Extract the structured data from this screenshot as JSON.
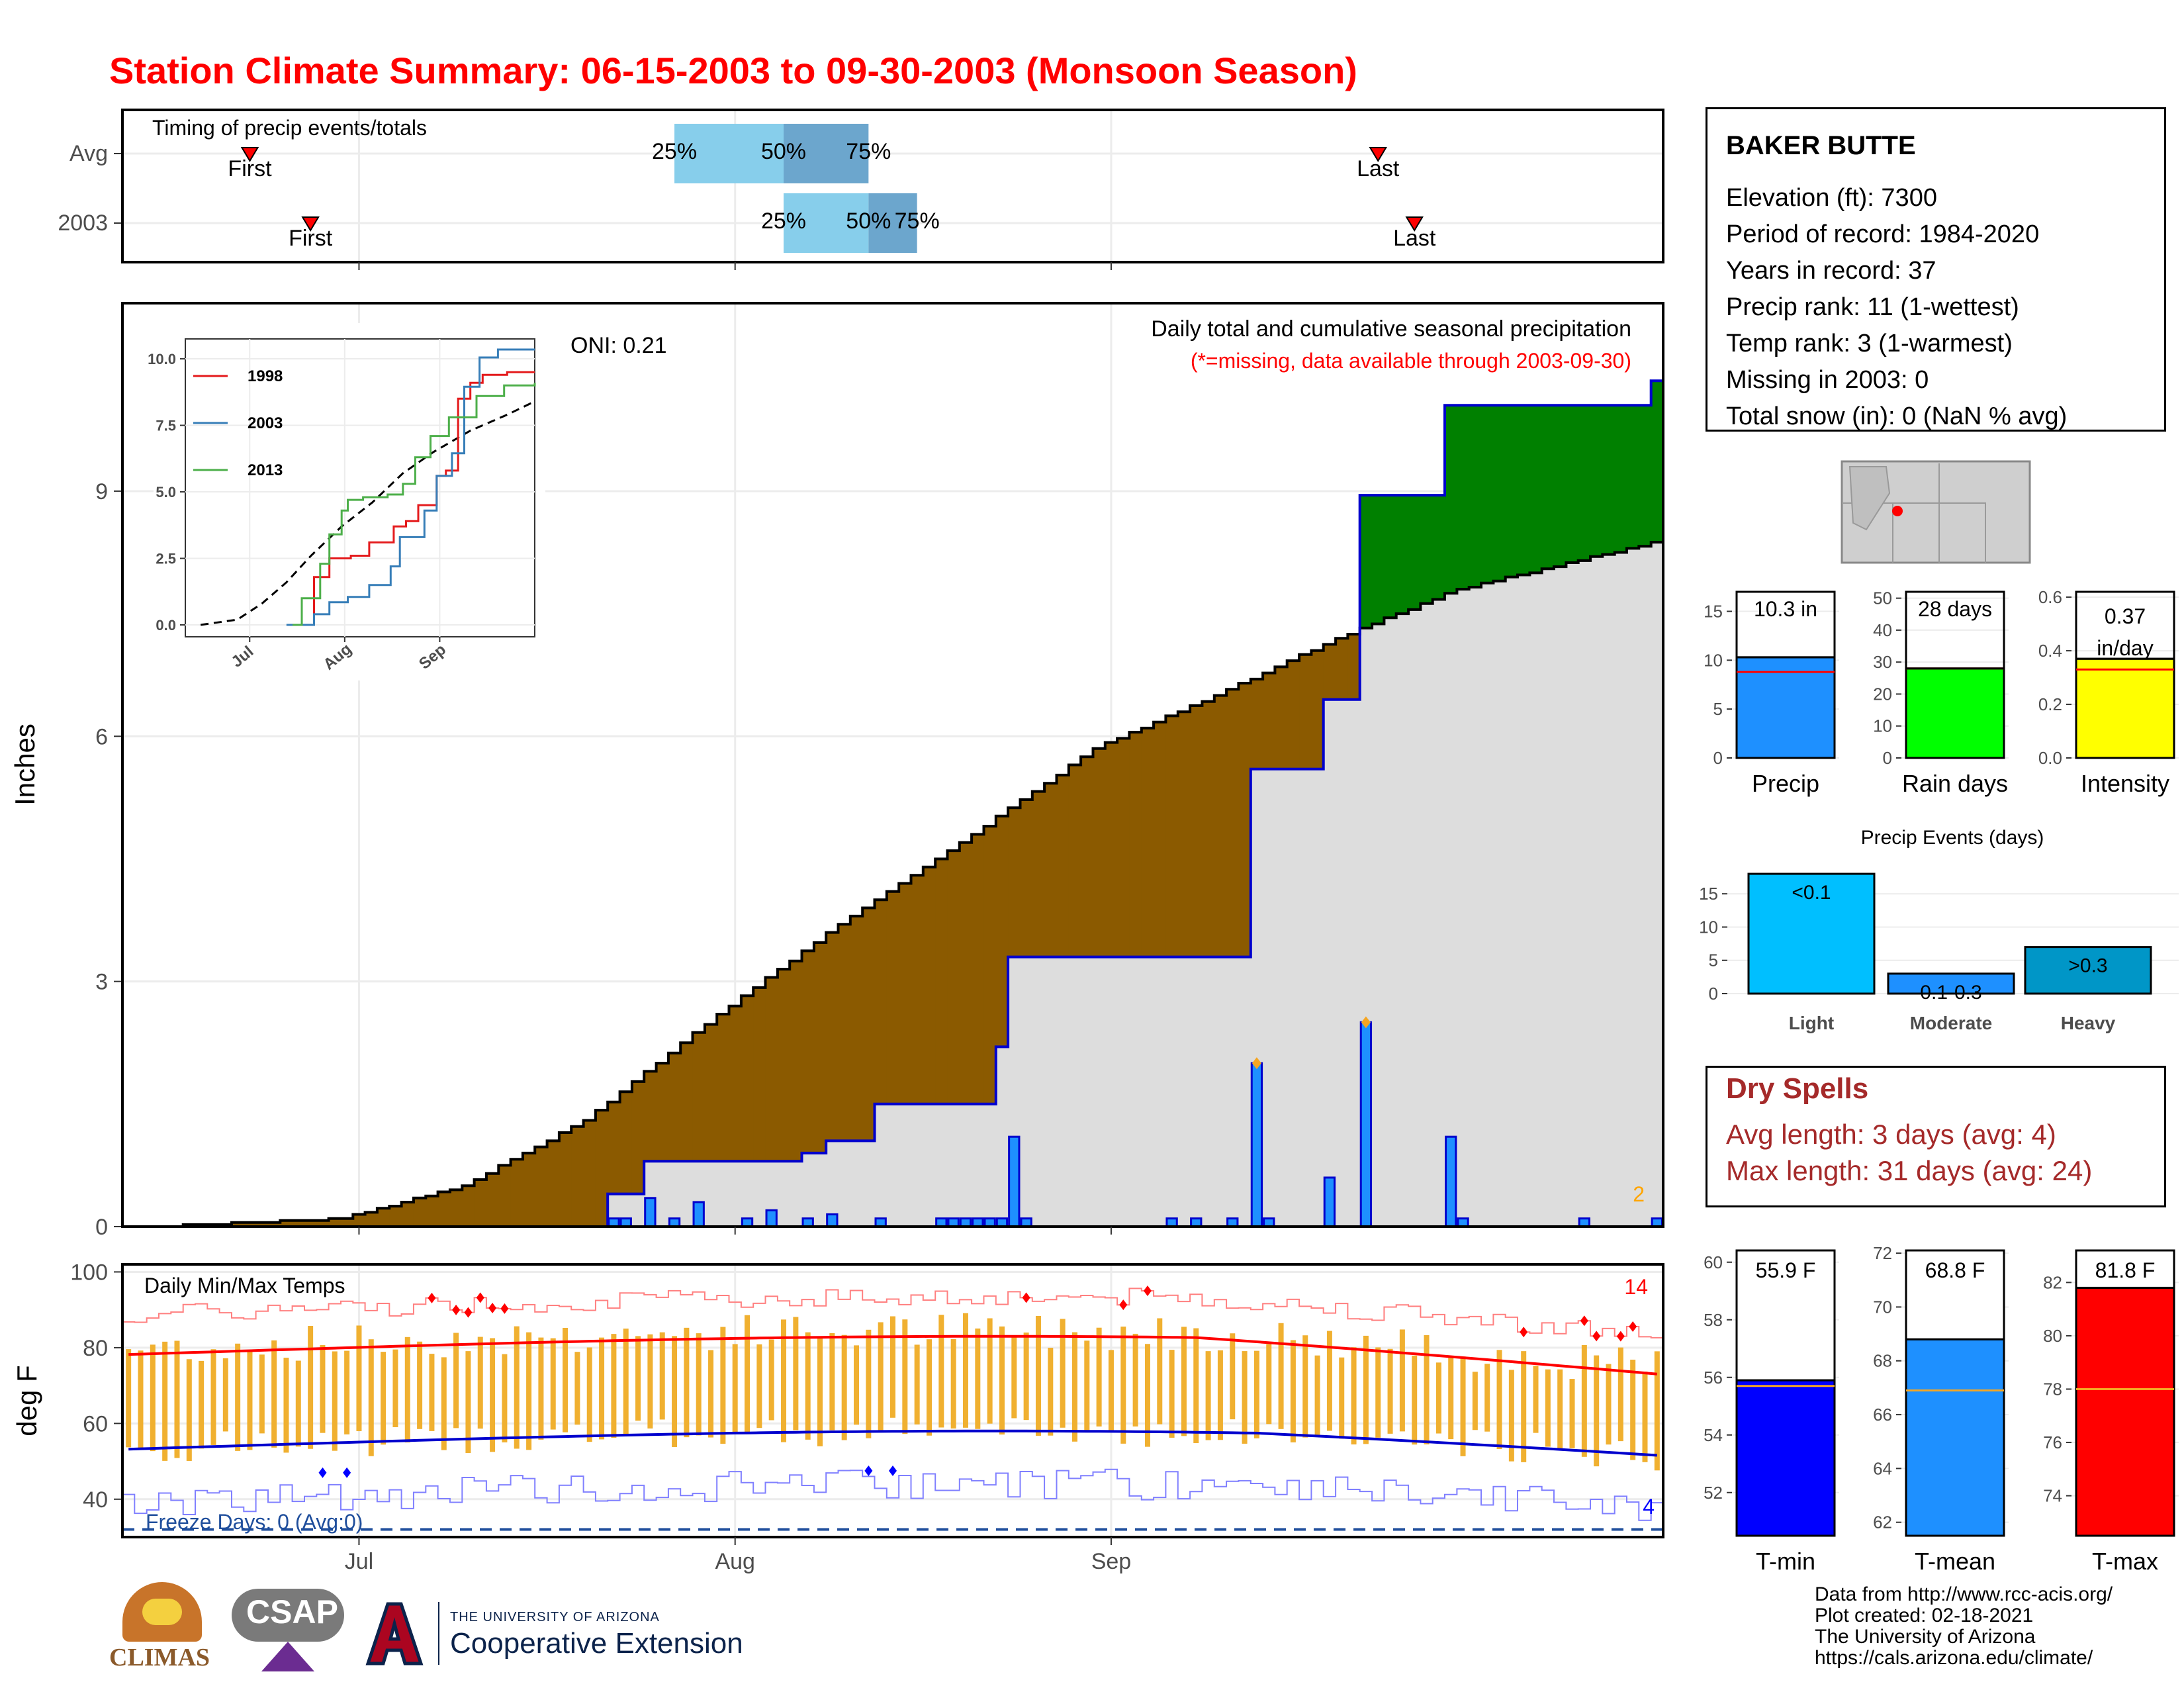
{
  "title": "Station Climate Summary: 06-15-2003 to 09-30-2003 (Monsoon Season)",
  "timing": {
    "label": "Timing of precip events/totals",
    "rows": [
      {
        "name": "Avg",
        "first": "06-22",
        "last": "09-23",
        "q25": "07-27",
        "q50": "08-05",
        "q75": "08-12"
      },
      {
        "name": "2003",
        "first": "06-27",
        "last": "09-26",
        "q25": "08-05",
        "q50": "08-12",
        "q75": "08-16"
      }
    ],
    "first_label": "First",
    "last_label": "Last",
    "q_labels": [
      "25%",
      "50%",
      "75%"
    ]
  },
  "main": {
    "ylabel": "Inches",
    "ticks": [
      0,
      3,
      6,
      9
    ],
    "ylim": [
      0,
      11.3
    ],
    "subtitle": "Daily total and cumulative seasonal precipitation",
    "missing_note": "(*=missing, data available through 2003-09-30)",
    "oni": "ONI: 0.21",
    "corner_count": "2"
  },
  "inset": {
    "yticks": [
      "0.0",
      "2.5",
      "5.0",
      "7.5",
      "10.0"
    ],
    "xticks": [
      "Jul",
      "Aug",
      "Sep"
    ],
    "legend": [
      {
        "name": "1998",
        "color": "#e41a1c"
      },
      {
        "name": "2003",
        "color": "#377eb8"
      },
      {
        "name": "2013",
        "color": "#4daf4a"
      }
    ]
  },
  "temps": {
    "label": "Daily Min/Max Temps",
    "ylabel": "deg F",
    "ticks": [
      40,
      60,
      80,
      100
    ],
    "ylim": [
      30,
      102
    ],
    "freeze": "Freeze Days: 0 (Avg:0)",
    "hot_count": "14",
    "cold_count": "4"
  },
  "xaxis": {
    "ticks": [
      "Jul",
      "Aug",
      "Sep"
    ]
  },
  "station": {
    "name": "BAKER BUTTE",
    "lines": [
      "Elevation (ft): 7300",
      "Period of record: 1984-2020",
      "Years in record: 37",
      "Precip rank: 11 (1-wettest)",
      "Temp rank: 3 (1-warmest)",
      "Missing in 2003: 0",
      "Total snow (in): 0 (NaN % avg)"
    ]
  },
  "mini_bars": [
    {
      "label": "Precip",
      "value_text": "10.3 in",
      "value": 10.3,
      "avg": 8.8,
      "ymax": 17,
      "ticks": [
        "0",
        "5",
        "10",
        "15"
      ],
      "tick_vals": [
        0,
        5,
        10,
        15
      ],
      "color": "#1e90ff"
    },
    {
      "label": "Rain days",
      "value_text": "28 days",
      "value": 28,
      "avg": 28,
      "ymax": 52,
      "ticks": [
        "0",
        "10",
        "20",
        "30",
        "40",
        "50"
      ],
      "tick_vals": [
        0,
        10,
        20,
        30,
        40,
        50
      ],
      "color": "#00ff00"
    },
    {
      "label": "Intensity",
      "value_text": "0.37 in/day",
      "value": 0.37,
      "avg": 0.33,
      "ymax": 0.62,
      "ticks": [
        "0.0",
        "0.2",
        "0.4",
        "0.6"
      ],
      "tick_vals": [
        0,
        0.2,
        0.4,
        0.6
      ],
      "color": "#ffff00"
    }
  ],
  "events": {
    "title": "Precip Events (days)",
    "categories": [
      "Light",
      "Moderate",
      "Heavy"
    ],
    "values": [
      18,
      3,
      7
    ],
    "labels": [
      "<0.1",
      "0.1-0.3",
      ">0.3"
    ],
    "colors": [
      "#00bfff",
      "#1e90ff",
      "#0096c7"
    ],
    "ticks": [
      0,
      5,
      10,
      15
    ]
  },
  "dry_spells": {
    "title": "Dry Spells",
    "avg": "Avg length: 3 days (avg: 4)",
    "max": "Max length: 31 days (avg: 24)"
  },
  "temp_bars": [
    {
      "label": "T-min",
      "value_text": "55.9 F",
      "value": 55.9,
      "avg": 55.7,
      "ymin": 50.5,
      "ymax": 60.5,
      "ticks": [
        52,
        54,
        56,
        58,
        60
      ],
      "color": "#0000ff"
    },
    {
      "label": "T-mean",
      "value_text": "68.8 F",
      "value": 68.8,
      "avg": 66.9,
      "ymin": 61.5,
      "ymax": 72.2,
      "ticks": [
        62,
        64,
        66,
        68,
        70,
        72
      ],
      "color": "#1e90ff"
    },
    {
      "label": "T-max",
      "value_text": "81.8 F",
      "value": 81.8,
      "avg": 78.0,
      "ymin": 72.5,
      "ymax": 83.3,
      "ticks": [
        74,
        76,
        78,
        80,
        82
      ],
      "color": "#ff0000"
    }
  ],
  "footer": [
    "Data from http://www.rcc-acis.org/",
    "Plot created: 02-18-2021",
    "The University of Arizona",
    "https://cals.arizona.edu/climate/"
  ],
  "logos": {
    "climas": "CLIMAS",
    "csap": "CSAP",
    "ua_small": "THE UNIVERSITY OF ARIZONA",
    "ua_big": "Cooperative Extension"
  },
  "chart_data": {
    "type": "area",
    "start_date": "06-15-2003",
    "end_date": "09-30-2003",
    "daily_precip_2003": [
      {
        "date": "07-22",
        "value": 0.1
      },
      {
        "date": "07-23",
        "value": 0.1
      },
      {
        "date": "07-25",
        "value": 0.35
      },
      {
        "date": "07-27",
        "value": 0.1
      },
      {
        "date": "07-29",
        "value": 0.3
      },
      {
        "date": "08-02",
        "value": 0.1
      },
      {
        "date": "08-04",
        "value": 0.2
      },
      {
        "date": "08-07",
        "value": 0.1
      },
      {
        "date": "08-09",
        "value": 0.15
      },
      {
        "date": "08-13",
        "value": 0.1
      },
      {
        "date": "08-18",
        "value": 0.1
      },
      {
        "date": "08-19",
        "value": 0.1
      },
      {
        "date": "08-20",
        "value": 0.1
      },
      {
        "date": "08-21",
        "value": 0.1
      },
      {
        "date": "08-22",
        "value": 0.1
      },
      {
        "date": "08-23",
        "value": 0.1
      },
      {
        "date": "08-24",
        "value": 1.1
      },
      {
        "date": "08-25",
        "value": 0.1
      },
      {
        "date": "09-06",
        "value": 0.1
      },
      {
        "date": "09-08",
        "value": 0.1
      },
      {
        "date": "09-11",
        "value": 0.1
      },
      {
        "date": "09-13",
        "value": 2.0
      },
      {
        "date": "09-14",
        "value": 0.1
      },
      {
        "date": "09-19",
        "value": 0.6
      },
      {
        "date": "09-22",
        "value": 2.5
      },
      {
        "date": "09-29",
        "value": 1.1
      },
      {
        "date": "09-30",
        "value": 0.1
      },
      {
        "date": "10-10",
        "value": 0.1
      },
      {
        "date": "10-16",
        "value": 0.1
      }
    ],
    "cumulative_2003": [
      {
        "date": "07-22",
        "value": 0.4
      },
      {
        "date": "07-25",
        "value": 0.8
      },
      {
        "date": "08-07",
        "value": 0.9
      },
      {
        "date": "08-09",
        "value": 1.05
      },
      {
        "date": "08-13",
        "value": 1.5
      },
      {
        "date": "08-23",
        "value": 2.2
      },
      {
        "date": "08-24",
        "value": 3.3
      },
      {
        "date": "09-13",
        "value": 5.6
      },
      {
        "date": "09-19",
        "value": 6.45
      },
      {
        "date": "09-22",
        "value": 8.95
      },
      {
        "date": "09-29",
        "value": 10.05
      },
      {
        "date": "10-16",
        "value": 10.35
      }
    ],
    "cumulative_avg": [
      {
        "date": "06-15",
        "value": 0.0
      },
      {
        "date": "06-30",
        "value": 0.1
      },
      {
        "date": "07-10",
        "value": 0.5
      },
      {
        "date": "07-20",
        "value": 1.3
      },
      {
        "date": "07-31",
        "value": 2.6
      },
      {
        "date": "08-10",
        "value": 3.7
      },
      {
        "date": "08-20",
        "value": 4.7
      },
      {
        "date": "08-31",
        "value": 5.85
      },
      {
        "date": "09-10",
        "value": 6.5
      },
      {
        "date": "09-20",
        "value": 7.2
      },
      {
        "date": "09-30",
        "value": 7.8
      },
      {
        "date": "10-17",
        "value": 8.4
      }
    ]
  }
}
